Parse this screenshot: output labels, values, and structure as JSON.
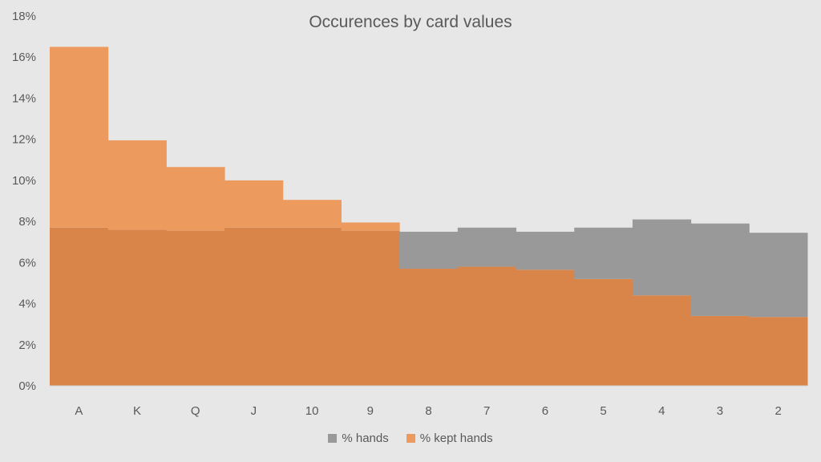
{
  "chart_data": {
    "type": "area",
    "title": "Occurences by card values",
    "categories": [
      "A",
      "K",
      "Q",
      "J",
      "10",
      "9",
      "8",
      "7",
      "6",
      "5",
      "4",
      "3",
      "2"
    ],
    "series": [
      {
        "name": "% hands",
        "color": "#999999",
        "values": [
          7.7,
          7.6,
          7.55,
          7.7,
          7.7,
          7.55,
          7.5,
          7.7,
          7.5,
          7.7,
          8.1,
          7.9,
          7.45
        ]
      },
      {
        "name": "% kept hands",
        "color": "#ed9a5f",
        "values": [
          16.5,
          11.95,
          10.65,
          10.0,
          9.05,
          7.95,
          5.7,
          5.8,
          5.65,
          5.2,
          4.4,
          3.4,
          3.35
        ]
      }
    ],
    "overlap_color": "#d9854a",
    "yaxis": {
      "min": 0,
      "max": 18,
      "step": 2,
      "tick_labels": [
        "0%",
        "2%",
        "4%",
        "6%",
        "8%",
        "10%",
        "12%",
        "14%",
        "16%",
        "18%"
      ]
    },
    "grid": false,
    "legend_position": "bottom",
    "background": "#e7e7e7"
  }
}
